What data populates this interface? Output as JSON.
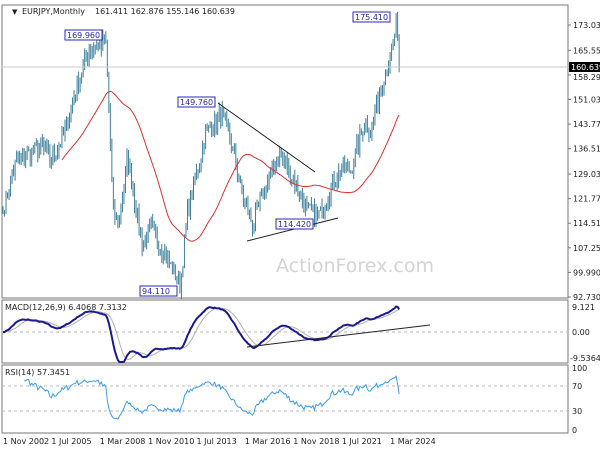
{
  "header": {
    "symbol": "EURJPY,Monthly",
    "ohlc": "161.411 162.876 155.146 160.639"
  },
  "watermark": "ActionForex.com",
  "colors": {
    "bars": "#3d7f9c",
    "ma": "#e03030",
    "macd": "#1a1a8c",
    "signal": "#b0b0b0",
    "rsi": "#3b9cf0",
    "label_border": "#2a2ab0",
    "trend": "#222222",
    "current_price_bg": "#000000"
  },
  "chart_data": [
    {
      "type": "ohlc",
      "symbol": "EURJPY",
      "timeframe": "Monthly",
      "y_ticks": [
        "173.030",
        "165.550",
        "158.290",
        "151.030",
        "143.770",
        "136.510",
        "129.030",
        "121.770",
        "114.510",
        "107.250",
        "99.990",
        "92.730"
      ],
      "ylim": [
        92.73,
        176.5
      ],
      "x_ticks": [
        "1 Nov 2002",
        "1 Jul 2005",
        "1 Mar 2008",
        "1 Nov 2010",
        "1 Jul 2013",
        "1 Mar 2016",
        "1 Nov 2018",
        "1 Jul 2021",
        "1 Mar 2024"
      ],
      "current_price": "160.639",
      "close_path": [
        [
          2002.83,
          118
        ],
        [
          2003.5,
          132
        ],
        [
          2004.2,
          135
        ],
        [
          2005.0,
          137
        ],
        [
          2005.5,
          133
        ],
        [
          2006.2,
          141
        ],
        [
          2007.0,
          157
        ],
        [
          2007.6,
          166
        ],
        [
          2008.5,
          168
        ],
        [
          2008.9,
          118
        ],
        [
          2009.2,
          114
        ],
        [
          2009.7,
          134
        ],
        [
          2010.5,
          108
        ],
        [
          2011.0,
          113
        ],
        [
          2011.7,
          106
        ],
        [
          2012.6,
          96
        ],
        [
          2013.0,
          118
        ],
        [
          2013.5,
          129
        ],
        [
          2014.0,
          141
        ],
        [
          2014.9,
          147
        ],
        [
          2015.5,
          136
        ],
        [
          2016.0,
          123
        ],
        [
          2016.6,
          114
        ],
        [
          2017.0,
          121
        ],
        [
          2017.8,
          132
        ],
        [
          2018.1,
          135
        ],
        [
          2018.8,
          128
        ],
        [
          2019.6,
          118
        ],
        [
          2020.3,
          117
        ],
        [
          2021.0,
          126
        ],
        [
          2021.5,
          131
        ],
        [
          2022.0,
          130
        ],
        [
          2022.8,
          145
        ],
        [
          2023.1,
          142
        ],
        [
          2023.8,
          158
        ],
        [
          2024.2,
          163
        ],
        [
          2024.5,
          173
        ],
        [
          2024.67,
          160.639
        ]
      ],
      "annotations": [
        {
          "text": "169.960"
        },
        {
          "text": "175.410"
        },
        {
          "text": "149.760"
        },
        {
          "text": "114.420"
        },
        {
          "text": "94.110"
        }
      ]
    },
    {
      "type": "line",
      "title": "MACD(12,26,9) 6.4068 7.3132",
      "y_ticks": [
        "9.121",
        "0.00",
        "-9.5364"
      ]
    },
    {
      "type": "line",
      "title": "RSI(14) 57.3451",
      "y_ticks": [
        "100",
        "70",
        "30",
        "0"
      ]
    }
  ]
}
